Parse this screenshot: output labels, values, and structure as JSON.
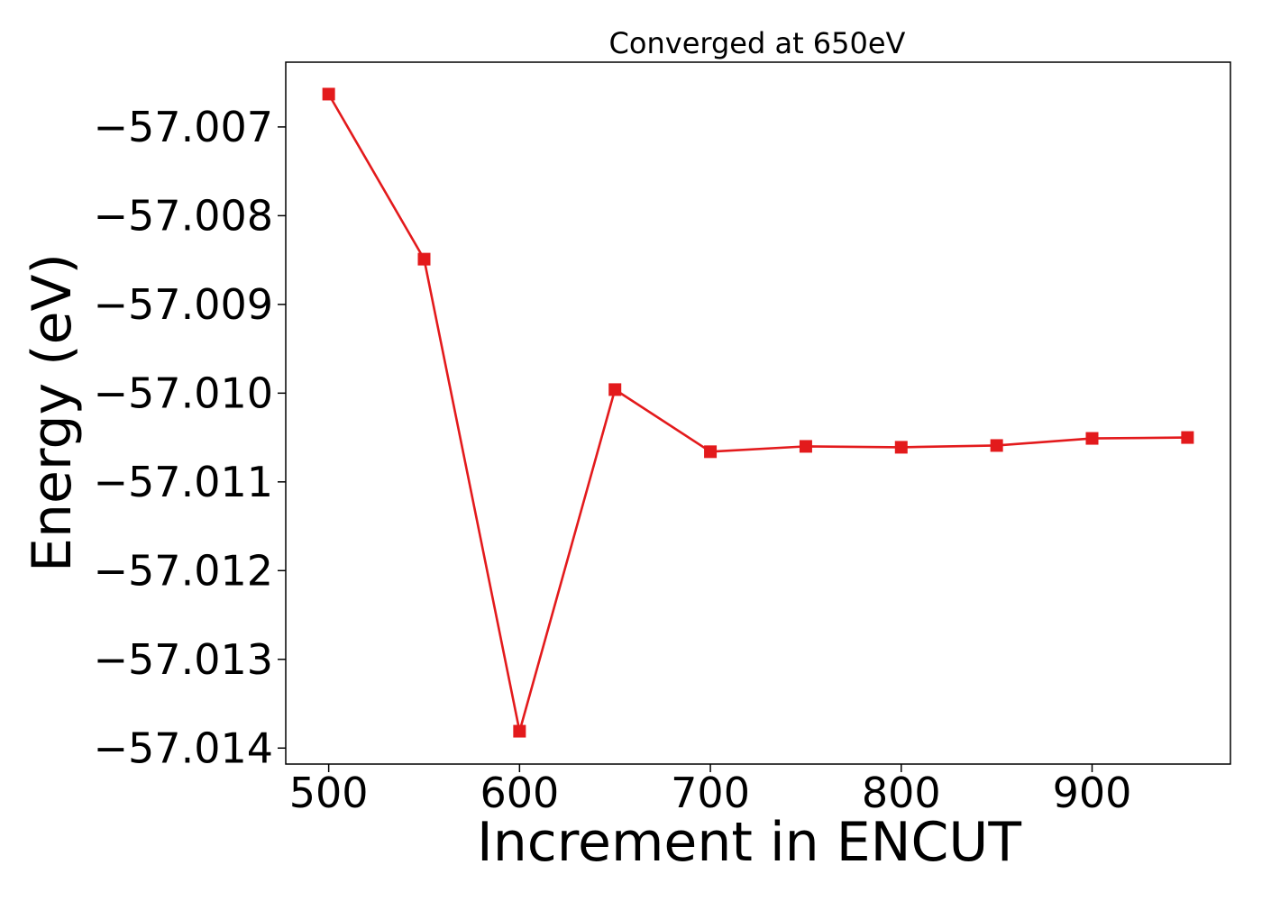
{
  "chart_data": {
    "type": "line",
    "title": "Converged at 650eV",
    "xlabel": "Increment in ENCUT",
    "ylabel": "Energy (eV)",
    "xlim": [
      477.5,
      972.5
    ],
    "ylim": [
      -57.01418,
      -57.00627
    ],
    "x_ticks": [
      500,
      600,
      700,
      800,
      900
    ],
    "x_tick_labels": [
      "500",
      "600",
      "700",
      "800",
      "900"
    ],
    "y_ticks": [
      -57.007,
      -57.008,
      -57.009,
      -57.01,
      -57.011,
      -57.012,
      -57.013,
      -57.014
    ],
    "y_tick_labels": [
      "−57.007",
      "−57.008",
      "−57.009",
      "−57.010",
      "−57.011",
      "−57.012",
      "−57.013",
      "−57.014"
    ],
    "grid": false,
    "legend": "none",
    "color": "#e31a1c",
    "marker": "square",
    "series": [
      {
        "x": [
          500,
          550,
          600,
          650,
          700,
          750,
          800,
          850,
          900,
          950
        ],
        "y": [
          -57.00663,
          -57.00849,
          -57.01381,
          -57.00996,
          -57.01066,
          -57.0106,
          -57.01061,
          -57.01059,
          -57.01051,
          -57.0105
        ]
      }
    ]
  }
}
